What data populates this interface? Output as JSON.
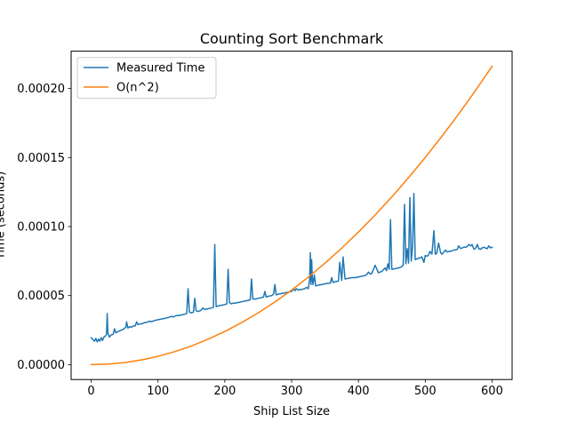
{
  "chart_data": {
    "type": "line",
    "title": "Counting Sort Benchmark",
    "xlabel": "Ship List Size",
    "ylabel": "Time (seconds)",
    "xlim": [
      -30,
      630
    ],
    "ylim": [
      -1.08e-05,
      0.000227
    ],
    "xticks": [
      0,
      100,
      200,
      300,
      400,
      500,
      600
    ],
    "xtick_labels": [
      "0",
      "100",
      "200",
      "300",
      "400",
      "500",
      "600"
    ],
    "yticks": [
      0,
      5e-05,
      0.0001,
      0.00015,
      0.0002
    ],
    "ytick_labels": [
      "0.00000",
      "0.00005",
      "0.00010",
      "0.00015",
      "0.00020"
    ],
    "grid": false,
    "legend_position": "top-left",
    "series": [
      {
        "name": "Measured Time",
        "color": "#1f77b4",
        "x": [
          0,
          3,
          5,
          7,
          9,
          11,
          13,
          15,
          17,
          19,
          21,
          23,
          24,
          25,
          27,
          30,
          33,
          35,
          37,
          40,
          43,
          45,
          48,
          50,
          52,
          53,
          55,
          58,
          60,
          63,
          66,
          68,
          70,
          73,
          75,
          78,
          80,
          83,
          85,
          88,
          90,
          95,
          100,
          105,
          110,
          115,
          120,
          123,
          125,
          127,
          130,
          135,
          140,
          143,
          145,
          147,
          150,
          153,
          155,
          157,
          160,
          163,
          165,
          167,
          170,
          175,
          180,
          183,
          185,
          187,
          190,
          195,
          200,
          203,
          205,
          207,
          210,
          212,
          215,
          220,
          225,
          230,
          235,
          238,
          240,
          242,
          245,
          250,
          255,
          258,
          260,
          262,
          265,
          270,
          273,
          275,
          277,
          280,
          285,
          290,
          295,
          300,
          303,
          305,
          307,
          310,
          315,
          320,
          322,
          325,
          327,
          328,
          329,
          330,
          331,
          332,
          334,
          336,
          340,
          345,
          350,
          355,
          358,
          360,
          362,
          365,
          370,
          372,
          375,
          377,
          380,
          385,
          390,
          395,
          400,
          405,
          410,
          412,
          415,
          418,
          420,
          425,
          430,
          432,
          435,
          440,
          442,
          444,
          446,
          448,
          450,
          455,
          460,
          463,
          465,
          467,
          469,
          471,
          473,
          475,
          477,
          479,
          481,
          483,
          485,
          487,
          490,
          493,
          495,
          498,
          500,
          503,
          505,
          507,
          510,
          513,
          515,
          517,
          520,
          523,
          525,
          528,
          530,
          533,
          535,
          538,
          540,
          543,
          545,
          548,
          550,
          553,
          555,
          558,
          560,
          563,
          565,
          568,
          570,
          573,
          575,
          578,
          580,
          583,
          585,
          588,
          590,
          593,
          595,
          598,
          600
        ],
        "y": [
          1.95e-05,
          1.8e-05,
          1.7e-05,
          1.9e-05,
          1.65e-05,
          1.85e-05,
          1.7e-05,
          1.95e-05,
          1.75e-05,
          2e-05,
          2.05e-05,
          2.2e-05,
          3.7e-05,
          2.3e-05,
          2e-05,
          2.15e-05,
          2.2e-05,
          2.6e-05,
          2.3e-05,
          2.4e-05,
          2.45e-05,
          2.5e-05,
          2.55e-05,
          2.65e-05,
          2.7e-05,
          3.1e-05,
          2.65e-05,
          2.75e-05,
          2.7e-05,
          2.8e-05,
          2.8e-05,
          3.1e-05,
          2.9e-05,
          2.95e-05,
          2.95e-05,
          3e-05,
          3.05e-05,
          3.05e-05,
          3.1e-05,
          3.15e-05,
          3.1e-05,
          3.2e-05,
          3.25e-05,
          3.3e-05,
          3.35e-05,
          3.4e-05,
          3.5e-05,
          3.45e-05,
          3.5e-05,
          3.55e-05,
          3.55e-05,
          3.6e-05,
          3.65e-05,
          3.7e-05,
          5.5e-05,
          3.8e-05,
          3.75e-05,
          3.8e-05,
          4.8e-05,
          3.9e-05,
          3.85e-05,
          3.9e-05,
          3.95e-05,
          4.1e-05,
          4e-05,
          4.05e-05,
          4.1e-05,
          4.15e-05,
          8.7e-05,
          4.2e-05,
          4.25e-05,
          4.3e-05,
          4.35e-05,
          4.4e-05,
          6.9e-05,
          4.5e-05,
          4.4e-05,
          4.45e-05,
          4.45e-05,
          4.5e-05,
          4.55e-05,
          4.6e-05,
          4.65e-05,
          4.7e-05,
          6.2e-05,
          4.75e-05,
          4.75e-05,
          4.8e-05,
          4.85e-05,
          4.9e-05,
          5.3e-05,
          4.9e-05,
          4.95e-05,
          5e-05,
          5.1e-05,
          5.8e-05,
          5.05e-05,
          5.1e-05,
          5.15e-05,
          5.2e-05,
          5.25e-05,
          5.3e-05,
          5.5e-05,
          5.35e-05,
          5.5e-05,
          5.4e-05,
          5.45e-05,
          5.5e-05,
          5.6e-05,
          5.5e-05,
          6.2e-05,
          8.1e-05,
          5.8e-05,
          7.6e-05,
          6.2e-05,
          5.8e-05,
          6.5e-05,
          5.7e-05,
          5.75e-05,
          5.8e-05,
          5.85e-05,
          5.9e-05,
          5.9e-05,
          6.3e-05,
          5.95e-05,
          6e-05,
          6.05e-05,
          7.4e-05,
          6.1e-05,
          7.8e-05,
          6.2e-05,
          6.25e-05,
          6.3e-05,
          6.3e-05,
          6.35e-05,
          6.4e-05,
          6.45e-05,
          6.5e-05,
          6.7e-05,
          6.55e-05,
          6.6e-05,
          7.2e-05,
          6.65e-05,
          6.7e-05,
          6.75e-05,
          7e-05,
          6.8e-05,
          7.3e-05,
          6.9e-05,
          0.000105,
          6.9e-05,
          6.95e-05,
          7e-05,
          7.05e-05,
          7.1e-05,
          7.2e-05,
          0.000116,
          7.3e-05,
          8.4e-05,
          7.35e-05,
          0.000121,
          7.5e-05,
          8.5e-05,
          0.000124,
          7.6e-05,
          7.65e-05,
          7.7e-05,
          7.75e-05,
          7.8e-05,
          7.4e-05,
          7.9e-05,
          7.85e-05,
          7.95e-05,
          8.2e-05,
          8e-05,
          9.7e-05,
          8e-05,
          8.05e-05,
          8.8e-05,
          8.1e-05,
          8e-05,
          8.15e-05,
          8.3e-05,
          8.15e-05,
          8.2e-05,
          8.2e-05,
          8.25e-05,
          8.3e-05,
          8.3e-05,
          8.35e-05,
          8.6e-05,
          8.4e-05,
          8.45e-05,
          8.5e-05,
          8.5e-05,
          8.55e-05,
          8.7e-05,
          8.6e-05,
          8.7e-05,
          8.35e-05,
          8.4e-05,
          8.7e-05,
          8.4e-05,
          8.35e-05,
          8.45e-05,
          8.5e-05,
          8.45e-05,
          8.4e-05,
          8.6e-05,
          8.45e-05,
          8.5e-05
        ]
      },
      {
        "name": "O(n^2)",
        "color": "#ff7f0e",
        "x": [
          0,
          25,
          50,
          75,
          100,
          125,
          150,
          175,
          200,
          225,
          250,
          275,
          300,
          325,
          350,
          375,
          400,
          425,
          450,
          475,
          500,
          525,
          550,
          575,
          600
        ],
        "y": [
          0,
          3.75e-07,
          1.5e-06,
          3.375e-06,
          6e-06,
          9.375e-06,
          1.35e-05,
          1.8375e-05,
          2.4e-05,
          3.0375e-05,
          3.75e-05,
          4.5375e-05,
          5.4e-05,
          6.3375e-05,
          7.35e-05,
          8.4375e-05,
          9.6e-05,
          0.000108375,
          0.0001215,
          0.000135375,
          0.00015,
          0.000165375,
          0.0001815,
          0.000198375,
          0.000216
        ]
      }
    ]
  }
}
